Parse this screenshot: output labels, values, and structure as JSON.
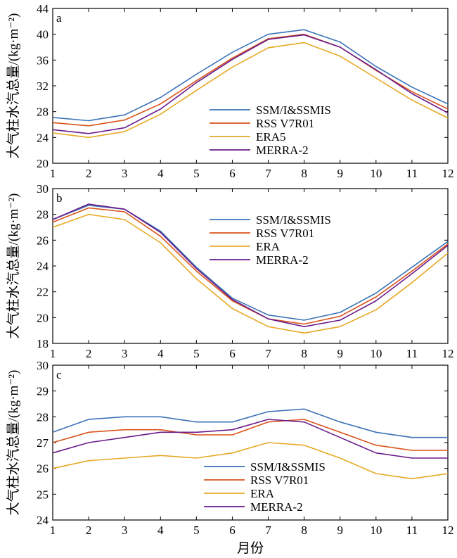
{
  "chart_data": [
    {
      "type": "line",
      "panel": "a",
      "ylabel": "大气柱水汽总量/(kg·m⁻²)",
      "xlabel": "",
      "x": [
        1,
        2,
        3,
        4,
        5,
        6,
        7,
        8,
        9,
        10,
        11,
        12
      ],
      "ylim": [
        20,
        44
      ],
      "yticks": [
        20,
        24,
        28,
        32,
        36,
        40,
        44
      ],
      "legend_position": "center-right",
      "series": [
        {
          "name": "SSM/I&SSMIS",
          "color": "#3a73b5",
          "values": [
            27.1,
            26.6,
            27.5,
            30.2,
            33.8,
            37.2,
            40.0,
            40.7,
            38.8,
            35.0,
            31.8,
            29.2
          ]
        },
        {
          "name": "RSS V7R01",
          "color": "#d95319",
          "values": [
            26.3,
            25.8,
            26.7,
            29.2,
            32.8,
            36.3,
            39.3,
            40.0,
            38.0,
            34.4,
            31.1,
            28.4
          ]
        },
        {
          "name": "ERA5",
          "color": "#e6a925",
          "values": [
            24.7,
            24.0,
            24.9,
            27.6,
            31.3,
            34.9,
            37.9,
            38.7,
            36.6,
            33.2,
            29.8,
            27.0
          ]
        },
        {
          "name": "MERRA-2",
          "color": "#6a1b8a",
          "values": [
            25.2,
            24.6,
            25.5,
            28.4,
            32.5,
            36.1,
            39.2,
            39.9,
            38.0,
            34.5,
            30.8,
            27.8
          ]
        }
      ]
    },
    {
      "type": "line",
      "panel": "b",
      "ylabel": "大气柱水汽总量/(kg·m⁻²)",
      "xlabel": "",
      "x": [
        1,
        2,
        3,
        4,
        5,
        6,
        7,
        8,
        9,
        10,
        11,
        12
      ],
      "ylim": [
        18,
        30
      ],
      "yticks": [
        18,
        20,
        22,
        24,
        26,
        28,
        30
      ],
      "legend_position": "center-right",
      "series": [
        {
          "name": "SSM/I&SSMIS",
          "color": "#3a73b5",
          "values": [
            27.6,
            28.7,
            28.4,
            26.7,
            23.9,
            21.5,
            20.2,
            19.8,
            20.4,
            21.9,
            23.9,
            25.9
          ]
        },
        {
          "name": "RSS V7R01",
          "color": "#d95319",
          "values": [
            27.4,
            28.5,
            28.2,
            26.3,
            23.6,
            21.3,
            19.9,
            19.5,
            20.1,
            21.6,
            23.6,
            25.7
          ]
        },
        {
          "name": "ERA",
          "color": "#e6a925",
          "values": [
            27.0,
            28.0,
            27.6,
            25.8,
            23.0,
            20.7,
            19.3,
            18.8,
            19.3,
            20.6,
            22.7,
            25.0
          ]
        },
        {
          "name": "MERRA-2",
          "color": "#6a1b8a",
          "values": [
            27.6,
            28.8,
            28.4,
            26.6,
            23.8,
            21.4,
            19.9,
            19.3,
            19.8,
            21.3,
            23.4,
            25.6
          ]
        }
      ]
    },
    {
      "type": "line",
      "panel": "c",
      "ylabel": "大气柱水汽总量/(kg·m⁻²)",
      "xlabel": "月份",
      "x": [
        1,
        2,
        3,
        4,
        5,
        6,
        7,
        8,
        9,
        10,
        11,
        12
      ],
      "ylim": [
        24,
        30
      ],
      "yticks": [
        24,
        25,
        26,
        27,
        28,
        29,
        30
      ],
      "legend_position": "lower-center",
      "series": [
        {
          "name": "SSM/I&SSMIS",
          "color": "#3a73b5",
          "values": [
            27.4,
            27.9,
            28.0,
            28.0,
            27.8,
            27.8,
            28.2,
            28.3,
            27.8,
            27.4,
            27.2,
            27.2
          ]
        },
        {
          "name": "RSS V7R01",
          "color": "#d95319",
          "values": [
            27.0,
            27.4,
            27.5,
            27.5,
            27.3,
            27.3,
            27.8,
            27.9,
            27.4,
            26.9,
            26.7,
            26.7
          ]
        },
        {
          "name": "ERA",
          "color": "#e6a925",
          "values": [
            26.0,
            26.3,
            26.4,
            26.5,
            26.4,
            26.6,
            27.0,
            26.9,
            26.4,
            25.8,
            25.6,
            25.8
          ]
        },
        {
          "name": "MERRA-2",
          "color": "#6a1b8a",
          "values": [
            26.6,
            27.0,
            27.2,
            27.4,
            27.4,
            27.5,
            27.9,
            27.8,
            27.2,
            26.6,
            26.4,
            26.4
          ]
        }
      ]
    }
  ]
}
